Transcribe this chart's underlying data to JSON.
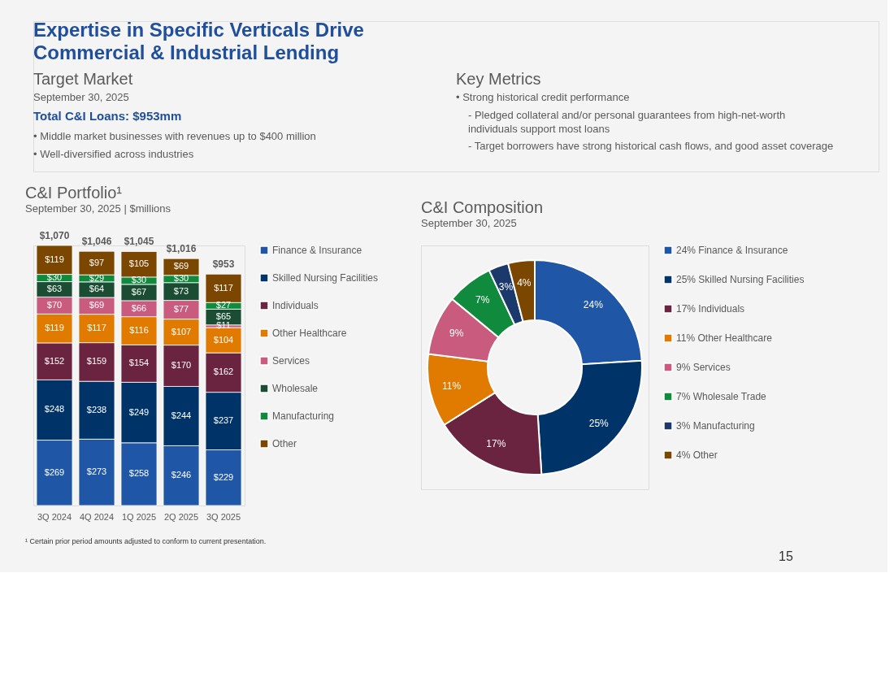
{
  "chart_data": [
    {
      "type": "other",
      "title": "Expertise in Specific Verticals Drive Commercial & Industrial Lending",
      "annotations": [
        "Target Market",
        "September 30, 2025",
        "Total C&I Loans: $953mm",
        "• Middle market businesses with revenues up to $400 million",
        "• Well-diversified across industries",
        "Key Metrics",
        "• Strong historical credit performance",
        "- Pledged collateral and/or personal guarantees from high-net-worth individuals support most loans",
        "- Target borrowers have strong historical cash flows, and good asset coverage"
      ]
    },
    {
      "type": "bar",
      "title": "C&I Portfolio¹",
      "subtitle": "September 30, 2025 | $millions",
      "stacked": true,
      "legend": "right",
      "categories": [
        "3Q 2024",
        "4Q 2024",
        "1Q 2025",
        "2Q 2025",
        "3Q 2025"
      ],
      "series": [
        {
          "name": "Finance & Insurance",
          "color": "#1f56a6",
          "values": [
            269,
            273,
            258,
            246,
            229
          ],
          "value_labels": [
            "$269",
            "$273",
            "$258",
            "$246",
            "$229"
          ]
        },
        {
          "name": "Skilled Nursing Facilities",
          "color": "#003468",
          "values": [
            248,
            238,
            249,
            244,
            237
          ],
          "value_labels": [
            "$248",
            "$238",
            "$249",
            "$244",
            "$237"
          ]
        },
        {
          "name": "Individuals",
          "color": "#6b2440",
          "values": [
            152,
            159,
            154,
            170,
            162
          ],
          "value_labels": [
            "$152",
            "$159",
            "$154",
            "$170",
            "$162"
          ]
        },
        {
          "name": "Other Healthcare",
          "color": "#e07b00",
          "values": [
            119,
            117,
            116,
            107,
            104
          ],
          "value_labels": [
            "$119",
            "$117",
            "$116",
            "$107",
            "$104"
          ]
        },
        {
          "name": "Services",
          "color": "#c95b7f",
          "values": [
            70,
            69,
            66,
            77,
            11
          ],
          "value_labels": [
            "$70",
            "$69",
            "$66",
            "$77",
            "$11"
          ]
        },
        {
          "name": "Wholesale",
          "color": "#1a4d33",
          "values": [
            63,
            64,
            67,
            73,
            65
          ],
          "value_labels": [
            "$63",
            "$64",
            "$67",
            "$73",
            "$65"
          ]
        },
        {
          "name": "Manufacturing",
          "color": "#108a3c",
          "values": [
            30,
            29,
            30,
            30,
            27
          ],
          "value_labels": [
            "$30",
            "$29",
            "$30",
            "$30",
            "$27"
          ]
        },
        {
          "name": "Other",
          "color": "#7b4600",
          "values": [
            119,
            97,
            105,
            69,
            117
          ],
          "value_labels": [
            "$119",
            "$97",
            "$105",
            "$69",
            "$117"
          ]
        }
      ],
      "totals": [
        "$1,070",
        "$1,046",
        "$1,045",
        "$1,016",
        "$953"
      ],
      "annotations": [
        "¹ Certain prior period amounts adjusted to conform to current presentation."
      ]
    },
    {
      "type": "donut",
      "title": "C&I Composition",
      "subtitle": "September 30, 2025",
      "legend": "right",
      "categories": [
        "24% Finance & Insurance",
        "25% Skilled Nursing Facilities",
        "17% Individuals",
        "11% Other Healthcare",
        "9% Services",
        "7% Wholesale Trade",
        "3% Manufacturing",
        "4% Other"
      ],
      "values": [
        24,
        25,
        17,
        11,
        9,
        7,
        3,
        4
      ],
      "colors": [
        "#1f56a6",
        "#003468",
        "#6b2440",
        "#e07b00",
        "#c95b7f",
        "#108a3c",
        "#1b3a6b",
        "#7b4600"
      ],
      "value_labels": [
        "24%",
        "25%",
        "17%",
        "11%",
        "9%",
        "7%",
        "3%",
        "4%"
      ],
      "annotations": [
        "15"
      ]
    }
  ]
}
